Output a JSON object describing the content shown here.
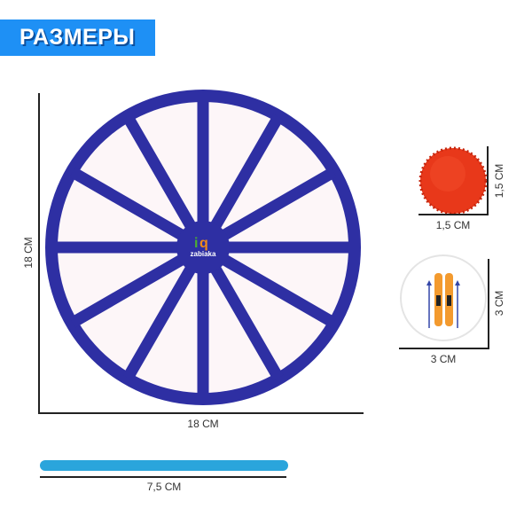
{
  "header": {
    "title": "РАЗМЕРЫ"
  },
  "wheel": {
    "logo": "iq zabiaka",
    "sectors": 12,
    "width_label": "18 СМ",
    "height_label": "18 СМ",
    "color": "#2e2fa3"
  },
  "pompom": {
    "width_label": "1,5 СМ",
    "height_label": "1,5 СМ",
    "color": "#e8381a"
  },
  "chip": {
    "width_label": "3 СМ",
    "height_label": "3 СМ",
    "icon": "skis-icon"
  },
  "stick": {
    "length_label": "7,5 СМ",
    "color": "#2aa5dc"
  },
  "colors": {
    "banner": "#1e90f5"
  }
}
